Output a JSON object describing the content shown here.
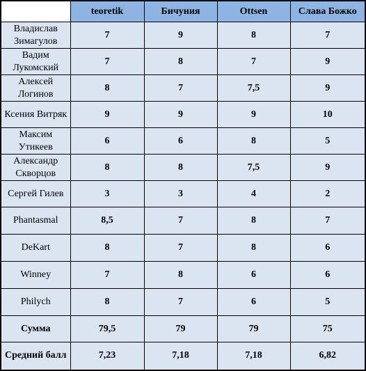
{
  "headers": [
    "teoretik",
    "Бичуния",
    "Ottsen",
    "Слава Божко"
  ],
  "rows": [
    {
      "name": "Владислав Зимагулов",
      "scores": [
        "7",
        "9",
        "8",
        "7"
      ]
    },
    {
      "name": "Вадим Лукомский",
      "scores": [
        "7",
        "8",
        "7",
        "9"
      ]
    },
    {
      "name": "Алексей Логинов",
      "scores": [
        "8",
        "7",
        "7,5",
        "9"
      ]
    },
    {
      "name": "Ксения Витряк",
      "scores": [
        "9",
        "9",
        "9",
        "10"
      ]
    },
    {
      "name": "Максим Утикеев",
      "scores": [
        "6",
        "6",
        "8",
        "5"
      ]
    },
    {
      "name": "Александр Скворцов",
      "scores": [
        "8",
        "8",
        "7,5",
        "9"
      ]
    },
    {
      "name": "Сергей Гилев",
      "scores": [
        "3",
        "3",
        "4",
        "2"
      ]
    },
    {
      "name": "Phantasmal",
      "scores": [
        "8,5",
        "7",
        "8",
        "7"
      ]
    },
    {
      "name": "DeKart",
      "scores": [
        "8",
        "7",
        "8",
        "6"
      ]
    },
    {
      "name": "Winney",
      "scores": [
        "7",
        "8",
        "6",
        "6"
      ]
    },
    {
      "name": "Philych",
      "scores": [
        "8",
        "7",
        "6",
        "5"
      ]
    }
  ],
  "sum_row": {
    "label": "Сумма",
    "values": [
      "79,5",
      "79",
      "79",
      "75"
    ]
  },
  "avg_row": {
    "label": "Средний балл",
    "values": [
      "7,23",
      "7,18",
      "7,18",
      "6,82"
    ]
  },
  "colors": {
    "header_bg": "#8db4e2",
    "cell_bg": "#dbe5f1",
    "border": "#000000"
  }
}
